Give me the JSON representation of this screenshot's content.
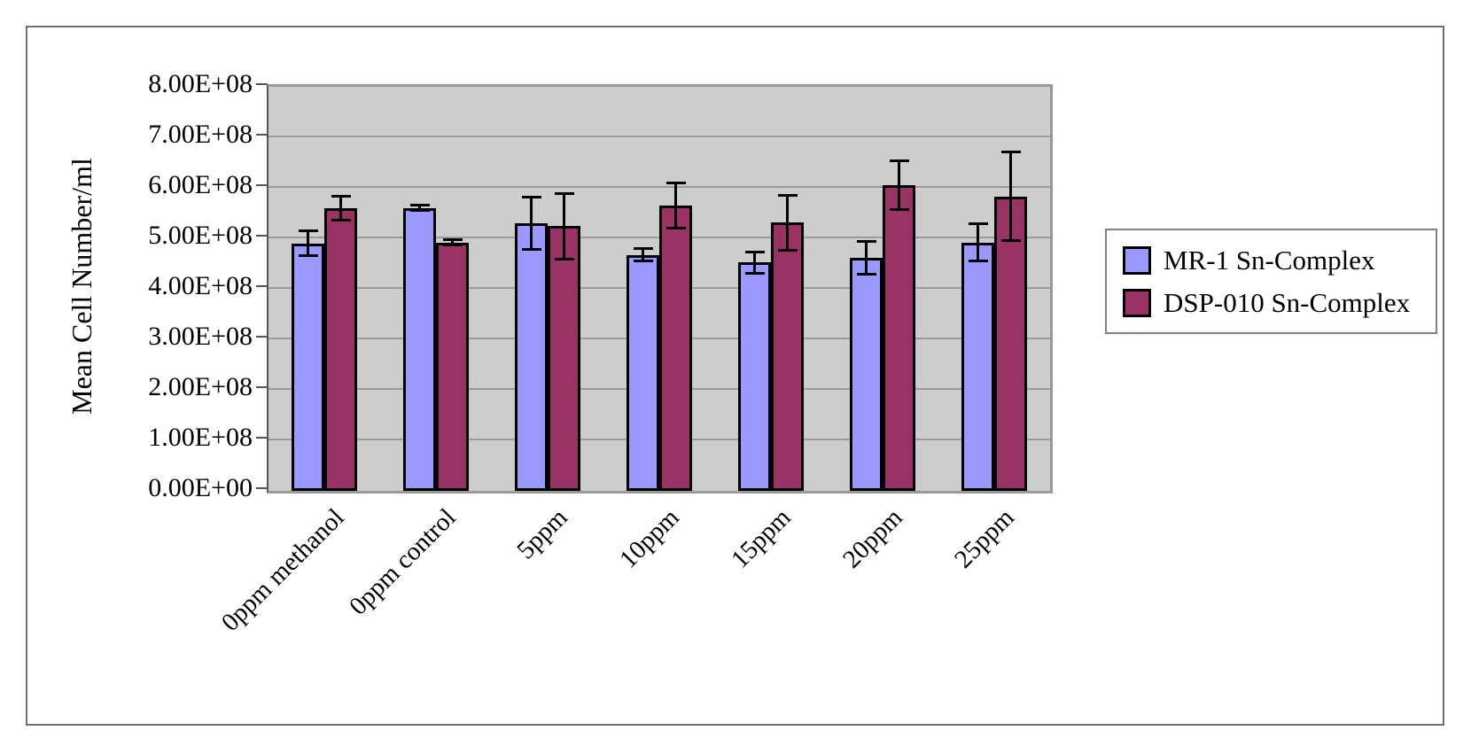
{
  "chart_data": {
    "type": "bar",
    "title": "",
    "xlabel": "",
    "ylabel": "Mean Cell Number/ml",
    "categories": [
      "0ppm methanol",
      "0ppm control",
      "5ppm",
      "10ppm",
      "15ppm",
      "20ppm",
      "25ppm"
    ],
    "series": [
      {
        "name": "MR-1 Sn-Complex",
        "color": "#9999FF",
        "values": [
          490000000.0,
          560000000.0,
          530000000.0,
          467000000.0,
          452000000.0,
          462000000.0,
          492000000.0
        ],
        "errors": [
          27000000.0,
          8000000.0,
          55000000.0,
          15000000.0,
          24000000.0,
          35000000.0,
          40000000.0
        ]
      },
      {
        "name": "DSP-010 Sn-Complex",
        "color": "#993366",
        "values": [
          560000000.0,
          492000000.0,
          524000000.0,
          565000000.0,
          531000000.0,
          605000000.0,
          583000000.0
        ],
        "errors": [
          26000000.0,
          8000000.0,
          68000000.0,
          48000000.0,
          57000000.0,
          51000000.0,
          90000000.0
        ]
      }
    ],
    "ylim": [
      0,
      800000000.0
    ],
    "ytick_step": 100000000.0,
    "ytick_labels": [
      "0.00E+00",
      "1.00E+08",
      "2.00E+08",
      "3.00E+08",
      "4.00E+08",
      "5.00E+08",
      "6.00E+08",
      "7.00E+08",
      "8.00E+08"
    ],
    "grid": true,
    "legend_position": "right",
    "plot_bg": "#CDCDCD",
    "gridline_color": "#9A9A9A",
    "error_bar_color": "#000000"
  }
}
